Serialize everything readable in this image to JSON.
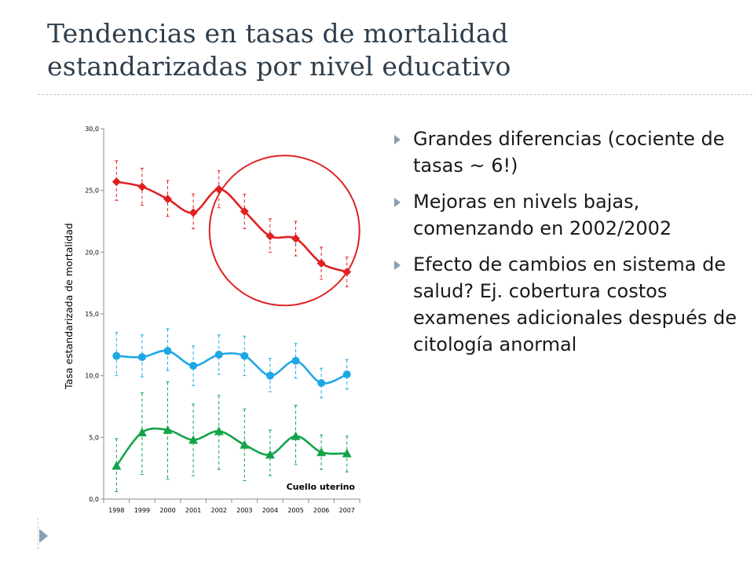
{
  "slide": {
    "title_lines": [
      "Tendencias en tasas de mortalidad",
      "estandarizadas por nivel educativo"
    ],
    "bullets": [
      "Grandes diferencias (cociente de tasas ~ 6!)",
      "Mejoras en nivels bajas, comenzando en 2002/2002",
      "Efecto de cambios en sistema de salud? Ej. cobertura costos examenes adicionales después de citología anormal"
    ],
    "accent_color": "#8a9fb2"
  },
  "chart_data": {
    "type": "line",
    "title": "",
    "xlabel": "",
    "ylabel": "Tasa estandarizada de mortalidad",
    "annotation": "Cuello uterino",
    "categories": [
      "1998",
      "1999",
      "2000",
      "2001",
      "2002",
      "2003",
      "2004",
      "2005",
      "2006",
      "2007"
    ],
    "ylim": [
      0,
      30
    ],
    "yticks": [
      "0,0",
      "5,0",
      "10,0",
      "15,0",
      "20,0",
      "25,0",
      "30,0"
    ],
    "ytick_values": [
      0,
      5,
      10,
      15,
      20,
      25,
      30
    ],
    "grid": false,
    "highlight": {
      "shape": "circle",
      "color": "#e02020",
      "around_categories": [
        "2002",
        "2007"
      ]
    },
    "series": [
      {
        "color": "#e02020",
        "marker": "diamond",
        "values": [
          25.7,
          25.3,
          24.3,
          23.2,
          25.1,
          23.3,
          21.3,
          21.1,
          19.1,
          18.4
        ],
        "lower": [
          24.2,
          23.8,
          22.9,
          21.9,
          23.6,
          21.9,
          20.0,
          19.7,
          17.8,
          17.2
        ],
        "upper": [
          27.4,
          26.8,
          25.8,
          24.7,
          26.6,
          24.7,
          22.7,
          22.5,
          20.4,
          19.6
        ]
      },
      {
        "color": "#1ea8e6",
        "marker": "circle",
        "values": [
          11.6,
          11.5,
          12.0,
          10.8,
          11.7,
          11.6,
          10.0,
          11.2,
          9.4,
          10.1
        ],
        "lower": [
          10.0,
          9.9,
          10.4,
          9.2,
          10.1,
          10.0,
          8.7,
          9.8,
          8.2,
          8.9
        ],
        "upper": [
          13.5,
          13.3,
          13.8,
          12.4,
          13.3,
          13.2,
          11.4,
          12.6,
          10.6,
          11.3
        ]
      },
      {
        "color": "#13a34a",
        "marker": "triangle",
        "values": [
          2.7,
          5.4,
          5.6,
          4.8,
          5.5,
          4.4,
          3.6,
          5.1,
          3.8,
          3.7
        ],
        "lower": [
          0.6,
          2.0,
          1.6,
          1.9,
          2.4,
          1.5,
          1.9,
          2.8,
          2.4,
          2.2
        ],
        "upper": [
          4.9,
          8.6,
          9.5,
          7.7,
          8.4,
          7.3,
          5.6,
          7.6,
          5.2,
          5.1
        ]
      }
    ]
  }
}
